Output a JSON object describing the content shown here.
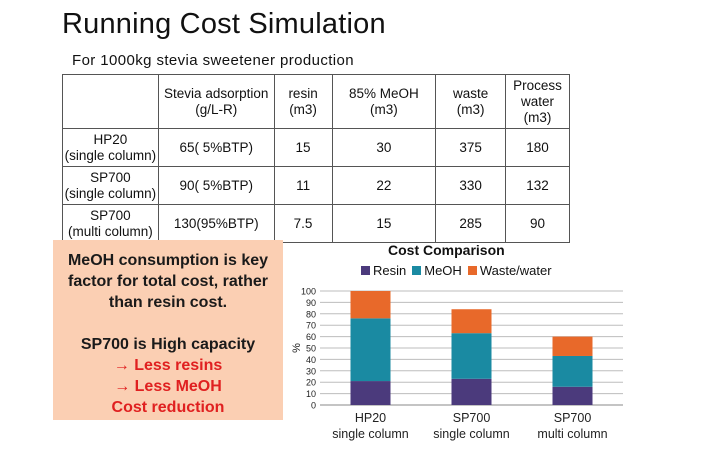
{
  "title": "Running Cost Simulation",
  "subtitle": "For 1000kg stevia sweetener production",
  "table": {
    "headers": [
      "",
      "Stevia adsorption\n(g/L-R)",
      "resin\n(m3)",
      "85% MeOH\n(m3)",
      "waste\n(m3)",
      "Process\nwater\n(m3)"
    ],
    "rows": [
      {
        "label": "HP20\n(single column)",
        "cells": [
          "65( 5%BTP)",
          "15",
          "30",
          "375",
          "180"
        ]
      },
      {
        "label": "SP700\n(single column)",
        "cells": [
          "90( 5%BTP)",
          "11",
          "22",
          "330",
          "132"
        ]
      },
      {
        "label": "SP700\n(multi column)",
        "cells": [
          "130(95%BTP)",
          "7.5",
          "15",
          "285",
          "90"
        ]
      }
    ]
  },
  "callout": {
    "lines": [
      "MeOH consumption is key",
      "factor for total cost, rather",
      "than resin cost.",
      "SP700 is High capacity",
      "→  Less resins",
      "→  Less MeOH",
      "Cost reduction"
    ]
  },
  "colors": {
    "resin": "#4b3a7c",
    "meoh": "#1a8aa2",
    "waste": "#e8692a",
    "callout_bg": "#fbcfb3",
    "callout_red": "#e02020"
  },
  "chart_data": {
    "type": "bar",
    "stacked": true,
    "title": "Cost Comparison",
    "ylabel": "%",
    "xlabel": "",
    "ylim": [
      0,
      100
    ],
    "yticks": [
      0,
      10,
      20,
      30,
      40,
      50,
      60,
      70,
      80,
      90,
      100
    ],
    "grid": true,
    "legend_position": "top",
    "categories": [
      [
        "HP20",
        "single column"
      ],
      [
        "SP700",
        "single column"
      ],
      [
        "SP700",
        "multi column"
      ]
    ],
    "series": [
      {
        "name": "Resin",
        "color": "#4b3a7c",
        "values": [
          21,
          23,
          16
        ]
      },
      {
        "name": "MeOH",
        "color": "#1a8aa2",
        "values": [
          55,
          40,
          27
        ]
      },
      {
        "name": "Waste/water",
        "color": "#e8692a",
        "values": [
          24,
          21,
          17
        ]
      }
    ]
  }
}
